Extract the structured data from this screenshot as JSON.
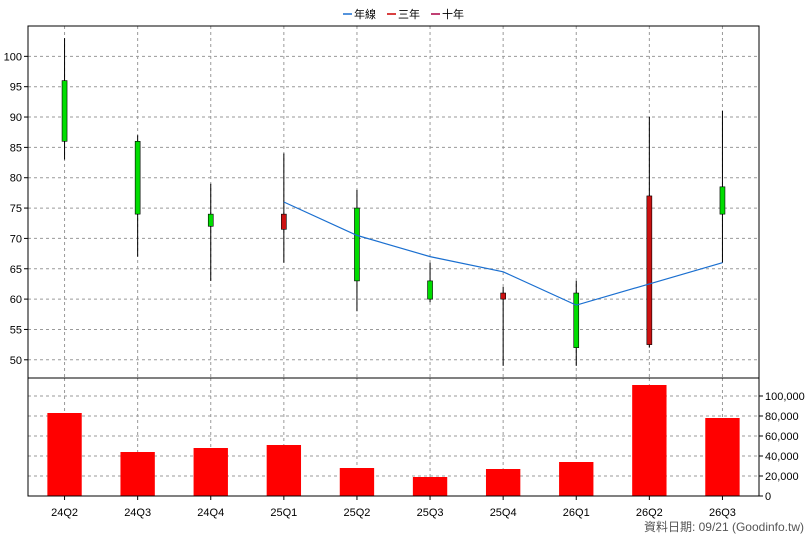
{
  "chart_data": [
    {
      "type": "candlestick",
      "categories": [
        "24Q2",
        "24Q3",
        "24Q4",
        "25Q1",
        "25Q2",
        "25Q3",
        "25Q4",
        "26Q1",
        "26Q2",
        "26Q3"
      ],
      "ohlc": [
        {
          "open": 86,
          "high": 103,
          "low": 83,
          "close": 96
        },
        {
          "open": 74,
          "high": 87,
          "low": 67,
          "close": 86
        },
        {
          "open": 72,
          "high": 79,
          "low": 63,
          "close": 74
        },
        {
          "open": 74,
          "high": 84,
          "low": 66,
          "close": 71.5
        },
        {
          "open": 63,
          "high": 78,
          "low": 58,
          "close": 75
        },
        {
          "open": 60,
          "high": 66,
          "low": 59.5,
          "close": 63
        },
        {
          "open": 61,
          "high": 62,
          "low": 49,
          "close": 60
        },
        {
          "open": 52,
          "high": 63,
          "low": 49,
          "close": 61
        },
        {
          "open": 77,
          "high": 90,
          "low": 52,
          "close": 52.5
        },
        {
          "open": 74,
          "high": 91,
          "low": 66,
          "close": 78.5
        }
      ],
      "series": [
        {
          "name": "年線",
          "color": "#1a6fd0",
          "values": [
            null,
            null,
            null,
            76,
            70.5,
            67,
            64.5,
            59,
            62.5,
            66
          ]
        }
      ],
      "legend": [
        {
          "label": "年線",
          "color": "#1a6fd0"
        },
        {
          "label": "三年",
          "color": "#cc0000"
        },
        {
          "label": "十年",
          "color": "#aa0044"
        }
      ],
      "yticks": [
        50,
        55,
        60,
        65,
        70,
        75,
        80,
        85,
        90,
        95,
        100
      ],
      "ylim": [
        47,
        105
      ],
      "colors": {
        "up": "#00dd00",
        "down": "#cc1111",
        "wick": "#000000"
      }
    },
    {
      "type": "bar",
      "categories": [
        "24Q2",
        "24Q3",
        "24Q4",
        "25Q1",
        "25Q2",
        "25Q3",
        "25Q4",
        "26Q1",
        "26Q2",
        "26Q3"
      ],
      "values": [
        83000,
        44000,
        48000,
        51000,
        28000,
        19000,
        27000,
        34000,
        111000,
        78000
      ],
      "yticks": [
        "0",
        "20,000",
        "40,000",
        "60,000",
        "80,000",
        "100,000"
      ],
      "ylim": [
        0,
        118000
      ],
      "color": "#ff0000"
    }
  ],
  "footer": "資料日期: 09/21 (Goodinfo.tw)"
}
